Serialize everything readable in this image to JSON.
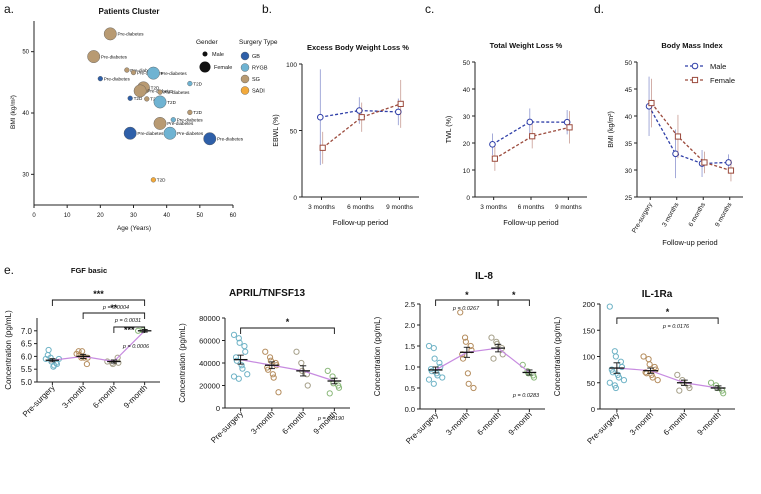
{
  "panel_labels": {
    "a": "a.",
    "b": "b.",
    "c": "c.",
    "d": "d.",
    "e": "e."
  },
  "colors": {
    "GB": "#2e5fa8",
    "RYGB": "#6fb3d2",
    "SG": "#b89a72",
    "SADI": "#f2a93b",
    "male": "#2f3fa8",
    "female": "#9b4a3c",
    "fit": "#c78be0",
    "axis": "#222222",
    "panel_e_gb": "#6fb3c6",
    "panel_e_sg": "#b58d5e",
    "panel_e_mid": "#a6a08a",
    "panel_e_late": "#8ab87a"
  },
  "chart_data": [
    {
      "id": "a",
      "type": "scatter",
      "title": "Patients Cluster",
      "xlabel": "Age (Years)",
      "ylabel": "BMI (kg/m²)",
      "xlim": [
        0,
        60
      ],
      "ylim": [
        25,
        55
      ],
      "xticks": [
        0,
        10,
        20,
        30,
        40,
        50,
        60
      ],
      "yticks": [
        30,
        40,
        50
      ],
      "legend": {
        "gender_title": "Gender",
        "gender": [
          "Male",
          "Female"
        ],
        "surgery_title": "Surgery Type",
        "surgery": [
          "GB",
          "RYGB",
          "SG",
          "SADI"
        ]
      },
      "points": [
        {
          "x": 23,
          "y": 52.9,
          "type": "SG",
          "gender": "Female",
          "label": "Pre-diabetes"
        },
        {
          "x": 18,
          "y": 49.2,
          "type": "SG",
          "gender": "Female",
          "label": "Pre-diabetes"
        },
        {
          "x": 28,
          "y": 47,
          "type": "SG",
          "gender": "Male",
          "label": "Pre-diabetes"
        },
        {
          "x": 30,
          "y": 46.6,
          "type": "SG",
          "gender": "Male",
          "label": "Pre-diabetes"
        },
        {
          "x": 20,
          "y": 45.6,
          "type": "GB",
          "gender": "Male",
          "label": "Pre-diabetes"
        },
        {
          "x": 36,
          "y": 46.5,
          "type": "RYGB",
          "gender": "Female",
          "label": "Pre-diabetes"
        },
        {
          "x": 47,
          "y": 44.8,
          "type": "RYGB",
          "gender": "Male",
          "label": "T2D"
        },
        {
          "x": 33,
          "y": 44.1,
          "type": "SG",
          "gender": "Female",
          "label": "T2D"
        },
        {
          "x": 32,
          "y": 43.6,
          "type": "SG",
          "gender": "Female",
          "label": "Pre-diabetes"
        },
        {
          "x": 38,
          "y": 43.4,
          "type": "SG",
          "gender": "Male",
          "label": "Pre-diabetes"
        },
        {
          "x": 29,
          "y": 42.4,
          "type": "GB",
          "gender": "Male",
          "label": "T2D"
        },
        {
          "x": 34,
          "y": 42.3,
          "type": "SG",
          "gender": "Male",
          "label": "T2D"
        },
        {
          "x": 38,
          "y": 41.8,
          "type": "RYGB",
          "gender": "Female",
          "label": "T2D"
        },
        {
          "x": 47,
          "y": 40.1,
          "type": "SG",
          "gender": "Male",
          "label": "T2D"
        },
        {
          "x": 42,
          "y": 38.9,
          "type": "RYGB",
          "gender": "Male",
          "label": "Pre-diabetes"
        },
        {
          "x": 38,
          "y": 38.3,
          "type": "SG",
          "gender": "Female",
          "label": "Pre-diabetes"
        },
        {
          "x": 29,
          "y": 36.7,
          "type": "GB",
          "gender": "Female",
          "label": "Pre-diabetes"
        },
        {
          "x": 41,
          "y": 36.7,
          "type": "RYGB",
          "gender": "Female",
          "label": "Pre-diabetes"
        },
        {
          "x": 53,
          "y": 35.8,
          "type": "GB",
          "gender": "Female",
          "label": "Pre-diabetes"
        },
        {
          "x": 36,
          "y": 29.1,
          "type": "SADI",
          "gender": "Male",
          "label": "T2D"
        }
      ]
    },
    {
      "id": "b",
      "type": "line",
      "title": "Excess Body Weight Loss %",
      "xlabel": "Follow-up period",
      "ylabel": "EBWL (%)",
      "categories": [
        "3 months",
        "6 months",
        "9 months"
      ],
      "ylim": [
        0,
        100
      ],
      "yticks": [
        0,
        50,
        100
      ],
      "series": [
        {
          "name": "Male",
          "values": [
            60,
            65,
            64
          ],
          "err": [
            36,
            10,
            10
          ]
        },
        {
          "name": "Female",
          "values": [
            37,
            60,
            70
          ],
          "err": [
            12,
            11,
            18
          ]
        }
      ]
    },
    {
      "id": "c",
      "type": "line",
      "title": "Total Weight Loss %",
      "xlabel": "Follow-up period",
      "ylabel": "TWL (%)",
      "categories": [
        "3 months",
        "6 months",
        "9 months"
      ],
      "ylim": [
        0,
        50
      ],
      "yticks": [
        0,
        10,
        20,
        30,
        40,
        50
      ],
      "series": [
        {
          "name": "Male",
          "values": [
            19.5,
            27.8,
            27.7
          ],
          "err": [
            4,
            5,
            4.5
          ]
        },
        {
          "name": "Female",
          "values": [
            14.2,
            22.5,
            25.8
          ],
          "err": [
            4.5,
            4.5,
            6
          ]
        }
      ]
    },
    {
      "id": "d",
      "type": "line",
      "title": "Body Mass Index",
      "xlabel": "Follow-up period",
      "ylabel": "BMI (kg/m²)",
      "categories": [
        "Pre-surgery",
        "3 months",
        "6 months",
        "9 months"
      ],
      "ylim": [
        25,
        50
      ],
      "yticks": [
        25,
        30,
        35,
        40,
        45,
        50
      ],
      "legend": [
        "Male",
        "Female"
      ],
      "series": [
        {
          "name": "Male",
          "values": [
            41.8,
            33,
            31.2,
            31.4
          ],
          "err": [
            5.5,
            4.5,
            2.5,
            1.5
          ]
        },
        {
          "name": "Female",
          "values": [
            42.4,
            36.2,
            31.4,
            29.9
          ],
          "err": [
            4.5,
            4,
            2,
            2
          ]
        }
      ]
    },
    {
      "id": "e1",
      "type": "scatter",
      "title": "FGF basic",
      "ylabel": "Concentration (pg/mL)",
      "categories": [
        "Pre-surgery",
        "3-month",
        "6-month",
        "9-month"
      ],
      "ylim": [
        5.0,
        7.5
      ],
      "yticks": [
        5.0,
        5.5,
        6.0,
        6.5,
        7.0
      ],
      "ytick_decimals": 1,
      "means": [
        5.85,
        6.0,
        5.8,
        7.0
      ],
      "sem": [
        0.06,
        0.08,
        0.06,
        0.05
      ],
      "points": [
        [
          5.9,
          5.95,
          5.8,
          5.75,
          5.7,
          6.05,
          6.25,
          5.6,
          5.65,
          5.9
        ],
        [
          6.1,
          5.95,
          6.2,
          5.7,
          5.95,
          6.2,
          6.05,
          5.95
        ],
        [
          5.8,
          5.75,
          5.7,
          5.95,
          5.75
        ],
        [
          7.0,
          7.02
        ]
      ],
      "comparisons": [
        {
          "from": 0,
          "to": 3,
          "stars": "***",
          "p": "p = 0.0004"
        },
        {
          "from": 1,
          "to": 3,
          "stars": "**",
          "p": "p = 0.0031"
        },
        {
          "from": 2,
          "to": 3,
          "stars": "***",
          "p": "p = 0.0006"
        }
      ]
    },
    {
      "id": "e2",
      "type": "scatter",
      "title": "APRIL/TNFSF13",
      "ylabel": "Concentration (pg/mL)",
      "categories": [
        "Pre-surgery",
        "3-month",
        "6-month",
        "9-month"
      ],
      "ylim": [
        0,
        80000
      ],
      "yticks": [
        0,
        20000,
        40000,
        60000,
        80000
      ],
      "ytick_decimals": 0,
      "means": [
        43000,
        38000,
        33000,
        24000
      ],
      "sem": [
        4000,
        3000,
        4500,
        2500
      ],
      "points": [
        [
          65000,
          62000,
          58000,
          55000,
          50000,
          45000,
          42000,
          38000,
          35000,
          30000,
          28000,
          26000
        ],
        [
          50000,
          45000,
          42000,
          40000,
          38000,
          36000,
          34000,
          30000,
          27000,
          14000
        ],
        [
          50000,
          40000,
          33000,
          30000,
          20000
        ],
        [
          33000,
          28000,
          22000,
          20000,
          18000,
          13000
        ]
      ],
      "comparisons": [
        {
          "from": 0,
          "to": 3,
          "stars": "*",
          "p": "p = 0.0190"
        }
      ]
    },
    {
      "id": "e3",
      "type": "scatter",
      "title": "IL-8",
      "ylabel": "Concentration (pg/mL)",
      "categories": [
        "Pre-surgery",
        "3-month",
        "6-month",
        "9-month"
      ],
      "ylim": [
        0.0,
        2.5
      ],
      "yticks": [
        0.0,
        0.5,
        1.0,
        1.5,
        2.0,
        2.5
      ],
      "ytick_decimals": 1,
      "means": [
        0.93,
        1.35,
        1.45,
        0.87
      ],
      "sem": [
        0.07,
        0.12,
        0.09,
        0.06
      ],
      "points": [
        [
          1.5,
          1.45,
          1.2,
          1.1,
          1.0,
          0.95,
          0.9,
          0.85,
          0.8,
          0.75,
          0.7,
          0.6
        ],
        [
          2.3,
          1.7,
          1.6,
          1.5,
          1.4,
          1.3,
          1.2,
          0.85,
          0.6,
          0.5
        ],
        [
          1.7,
          1.6,
          1.55,
          1.45,
          1.3,
          1.2
        ],
        [
          1.05,
          0.9,
          0.85,
          0.8,
          0.75
        ]
      ],
      "comparisons": [
        {
          "from": 0,
          "to": 2,
          "stars": "*",
          "p": "p = 0.0267"
        },
        {
          "from": 2,
          "to": 3,
          "stars": "*",
          "p": "p = 0.0283"
        }
      ]
    },
    {
      "id": "e4",
      "type": "scatter",
      "title": "IL-1Ra",
      "ylabel": "Concentration (pg/mL)",
      "categories": [
        "Pre-surgery",
        "3-month",
        "6-month",
        "9-month"
      ],
      "ylim": [
        0,
        200
      ],
      "yticks": [
        0,
        50,
        100,
        150,
        200
      ],
      "ytick_decimals": 0,
      "means": [
        78,
        73,
        50,
        40
      ],
      "sem": [
        10,
        5,
        5,
        4
      ],
      "points": [
        [
          195,
          110,
          100,
          90,
          80,
          75,
          70,
          65,
          60,
          55,
          50,
          45,
          40
        ],
        [
          100,
          95,
          85,
          80,
          75,
          70,
          68,
          65,
          60,
          55
        ],
        [
          65,
          55,
          50,
          45,
          40,
          35
        ],
        [
          50,
          45,
          40,
          35,
          30
        ]
      ],
      "comparisons": [
        {
          "from": 0,
          "to": 3,
          "stars": "*",
          "p": "p = 0.0176"
        }
      ]
    }
  ]
}
